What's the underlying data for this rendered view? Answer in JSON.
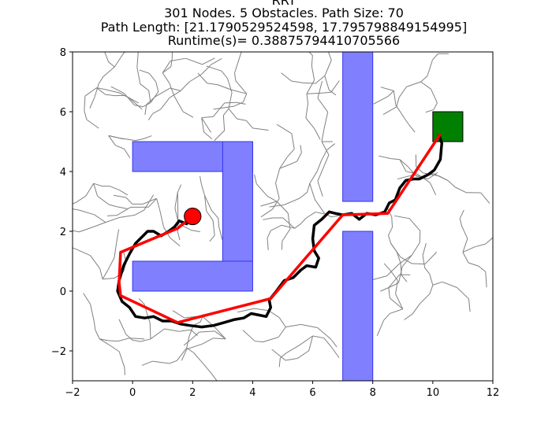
{
  "chart_data": {
    "type": "scatter",
    "title_lines": [
      "RRT",
      "301 Nodes. 5 Obstacles. Path Size: 70",
      "Path Length: [21.1790529524598, 17.795798849154995]",
      "Runtime(s)= 0.38875794410705566"
    ],
    "xlim": [
      -2,
      12
    ],
    "ylim": [
      -3,
      8
    ],
    "xticks": [
      -2,
      0,
      2,
      4,
      6,
      8,
      10,
      12
    ],
    "yticks": [
      -2,
      0,
      2,
      4,
      6,
      8
    ],
    "xtick_labels": [
      "−2",
      "0",
      "2",
      "4",
      "6",
      "8",
      "10",
      "12"
    ],
    "ytick_labels": [
      "−2",
      "0",
      "2",
      "4",
      "6",
      "8"
    ],
    "grid": false,
    "colors": {
      "obstacle_fill": "#8080ff",
      "obstacle_edge": "#3333ee",
      "tree": "#808080",
      "raw_path": "#000000",
      "smoothed_path": "#ff0000",
      "start": "#ff0000",
      "goal": "#008000"
    },
    "obstacles": [
      {
        "name": "c-top-bar",
        "x": [
          0,
          4
        ],
        "y": [
          4,
          5
        ]
      },
      {
        "name": "c-right-bar",
        "x": [
          3,
          4
        ],
        "y": [
          1,
          5
        ]
      },
      {
        "name": "c-bottom-bar",
        "x": [
          0,
          4
        ],
        "y": [
          0,
          1
        ]
      },
      {
        "name": "upper-wall",
        "x": [
          7,
          8
        ],
        "y": [
          3,
          8
        ]
      },
      {
        "name": "lower-wall",
        "x": [
          7,
          8
        ],
        "y": [
          -3,
          2
        ]
      }
    ],
    "start": {
      "x": 2,
      "y": 2.5,
      "radius": 0.28
    },
    "goal": {
      "x": [
        10,
        11
      ],
      "y": [
        5,
        6
      ]
    },
    "smoothed_path": {
      "x": [
        2.0,
        1.5,
        -0.4,
        -0.45,
        -0.4,
        1.5,
        4.6,
        7.0,
        8.5,
        10.25
      ],
      "y": [
        2.5,
        2.1,
        1.3,
        0.3,
        -0.15,
        -1.05,
        -0.25,
        2.55,
        2.6,
        5.25
      ]
    },
    "raw_path": {
      "x": [
        2.0,
        1.8,
        1.55,
        1.4,
        1.2,
        0.95,
        0.7,
        0.5,
        0.35,
        0.1,
        -0.1,
        -0.3,
        -0.45,
        -0.5,
        -0.35,
        -0.1,
        0.1,
        0.4,
        0.7,
        1.0,
        1.3,
        1.6,
        1.9,
        2.3,
        2.7,
        3.05,
        3.4,
        3.7,
        3.95,
        4.2,
        4.45,
        4.6,
        4.55,
        4.75,
        5.05,
        5.35,
        5.6,
        5.8,
        6.1,
        6.2,
        6.05,
        6.0,
        6.05,
        6.3,
        6.55,
        6.75,
        7.0,
        7.3,
        7.55,
        7.8,
        8.1,
        8.4,
        8.55,
        8.75,
        8.9,
        9.1,
        9.35,
        9.55,
        9.85,
        10.05,
        10.25,
        10.3,
        10.2
      ],
      "y": [
        2.5,
        2.25,
        2.35,
        2.15,
        2.0,
        1.85,
        2.0,
        2.0,
        1.85,
        1.6,
        1.25,
        0.85,
        0.35,
        0.0,
        -0.35,
        -0.55,
        -0.85,
        -0.9,
        -0.85,
        -1.0,
        -1.0,
        -1.1,
        -1.15,
        -1.2,
        -1.15,
        -1.05,
        -0.95,
        -0.9,
        -0.75,
        -0.8,
        -0.85,
        -0.55,
        -0.3,
        -0.05,
        0.35,
        0.45,
        0.7,
        0.85,
        0.8,
        1.1,
        1.35,
        1.75,
        2.2,
        2.4,
        2.65,
        2.6,
        2.55,
        2.6,
        2.4,
        2.6,
        2.55,
        2.65,
        2.95,
        3.05,
        3.45,
        3.7,
        3.75,
        3.75,
        3.9,
        4.05,
        4.4,
        4.95,
        5.25
      ]
    }
  }
}
